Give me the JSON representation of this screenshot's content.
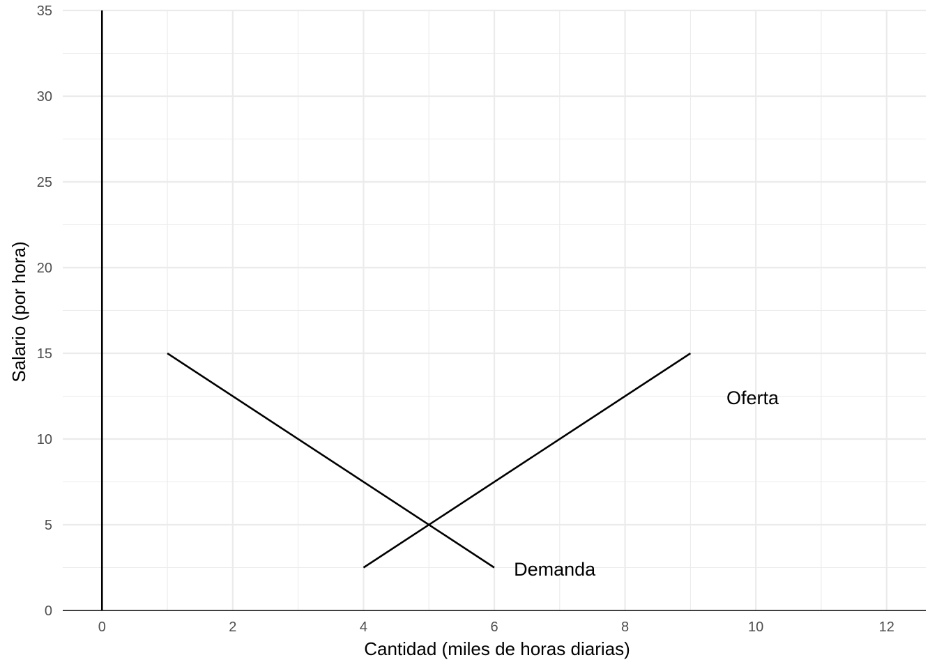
{
  "chart_data": {
    "type": "line",
    "title": "",
    "xlabel": "Cantidad (miles de horas diarias)",
    "ylabel": "Salario (por hora)",
    "xlim": [
      -0.6,
      12.6
    ],
    "ylim": [
      0,
      35
    ],
    "x_ticks": [
      0,
      2,
      4,
      6,
      8,
      10,
      12
    ],
    "y_ticks": [
      0,
      5,
      10,
      15,
      20,
      25,
      30,
      35
    ],
    "grid": true,
    "legend": "none",
    "colors": {
      "line": "#000000",
      "grid": "#ebebeb",
      "tick_text": "#4d4d4d"
    },
    "series": [
      {
        "name": "Demanda",
        "x": [
          1,
          6
        ],
        "y": [
          15,
          2.5
        ]
      },
      {
        "name": "Oferta",
        "x": [
          4,
          9
        ],
        "y": [
          2.5,
          15
        ]
      }
    ],
    "annotations": [
      {
        "text": "Demanda",
        "x": 6.3,
        "y": 2.4
      },
      {
        "text": "Oferta",
        "x": 9.55,
        "y": 12.4
      }
    ],
    "reference_lines": [
      {
        "type": "vertical",
        "x": 0
      }
    ]
  }
}
